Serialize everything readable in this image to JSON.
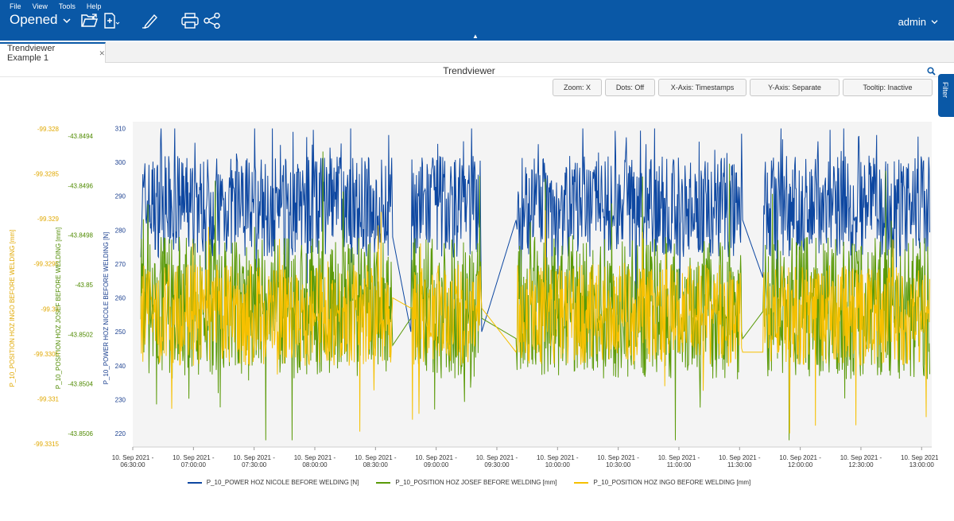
{
  "menu": [
    "File",
    "View",
    "Tools",
    "Help"
  ],
  "header": {
    "opened_label": "Opened",
    "user": "admin"
  },
  "tabs": [
    {
      "label": "Trendviewer Example 1"
    }
  ],
  "panel": {
    "title": "Trendviewer",
    "filter_label": "Filter"
  },
  "toolbar_buttons": [
    "Zoom: X",
    "Dots: Off",
    "X-Axis: Timestamps",
    "Y-Axis: Separate",
    "Tooltip: Inactive"
  ],
  "colors": {
    "header": "#0a58a6",
    "series_power": "#0d47a1",
    "series_josef": "#5a9a08",
    "series_ingo": "#f6c000"
  },
  "chart_data": {
    "type": "line",
    "x_ticks": [
      [
        "10. Sep 2021 -",
        "06:30:00"
      ],
      [
        "10. Sep 2021 -",
        "07:00:00"
      ],
      [
        "10. Sep 2021 -",
        "07:30:00"
      ],
      [
        "10. Sep 2021 -",
        "08:00:00"
      ],
      [
        "10. Sep 2021 -",
        "08:30:00"
      ],
      [
        "10. Sep 2021 -",
        "09:00:00"
      ],
      [
        "10. Sep 2021 -",
        "09:30:00"
      ],
      [
        "10. Sep 2021 -",
        "10:00:00"
      ],
      [
        "10. Sep 2021 -",
        "10:30:00"
      ],
      [
        "10. Sep 2021 -",
        "11:00:00"
      ],
      [
        "10. Sep 2021 -",
        "11:30:00"
      ],
      [
        "10. Sep 2021 -",
        "12:00:00"
      ],
      [
        "10. Sep 2021 -",
        "12:30:00"
      ],
      [
        "10. Sep 2021 -",
        "13:00:00"
      ]
    ],
    "x_range_minutes": [
      390,
      785
    ],
    "axes": [
      {
        "label": "P_10_POSITION HOZ INGO BEFORE WELDING [mm]",
        "ticks": [
          "-99.328",
          "-99.3285",
          "-99.329",
          "-99.3295",
          "-99.33",
          "-99.3305",
          "-99.331",
          "-99.3315"
        ]
      },
      {
        "label": "P_10_POSITION HOZ JOSEF BEFORE WELDING [mm]",
        "ticks": [
          "-43.8494",
          "-43.8496",
          "-43.8498",
          "-43.85",
          "-43.8502",
          "-43.8504",
          "-43.8506"
        ]
      },
      {
        "label": "P_10_POWER HOZ NICOLE BEFORE WELDING [N]",
        "ticks": [
          "310",
          "300",
          "290",
          "280",
          "270",
          "260",
          "250",
          "240",
          "230",
          "220"
        ]
      }
    ],
    "y_range": [
      216,
      312
    ],
    "data_segments_minutes": [
      [
        394,
        518
      ],
      [
        528,
        562
      ],
      [
        580,
        691
      ],
      [
        702,
        784
      ]
    ],
    "series": [
      {
        "name": "P_10_POWER HOZ NICOLE BEFORE WELDING [N]",
        "band": [
          272,
          302
        ],
        "gap_values": [
          278,
          250,
          283,
          266
        ]
      },
      {
        "name": "P_10_POSITION HOZ JOSEF BEFORE WELDING [mm]",
        "band": [
          236,
          278
        ],
        "gap_values": [
          246,
          254,
          248,
          256
        ]
      },
      {
        "name": "P_10_POSITION HOZ INGO BEFORE WELDING [mm]",
        "band": [
          240,
          270
        ],
        "gap_values": [
          260,
          257,
          244,
          244
        ]
      }
    ]
  }
}
